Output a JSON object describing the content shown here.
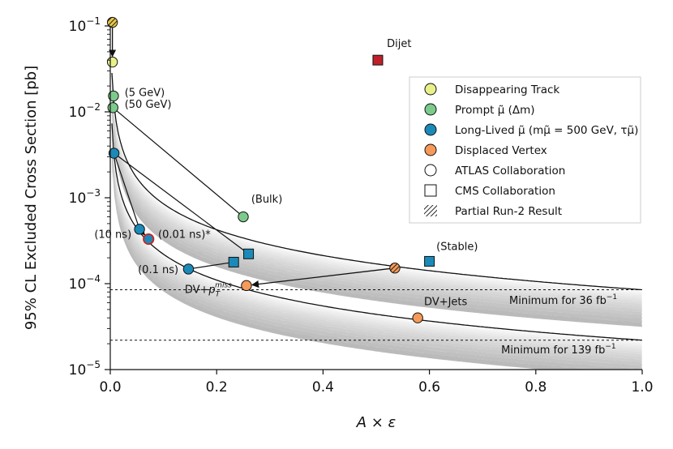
{
  "chart_data": {
    "type": "scatter",
    "xlabel": "A × ε",
    "ylabel": "95% CL Excluded Cross Section [pb]",
    "xlim": [
      0,
      1.0
    ],
    "ylim": [
      1e-05,
      0.1
    ],
    "yscale": "log",
    "x_ticks": [
      {
        "value": 0.0,
        "label": "0.0"
      },
      {
        "value": 0.2,
        "label": "0.2"
      },
      {
        "value": 0.4,
        "label": "0.4"
      },
      {
        "value": 0.6,
        "label": "0.6"
      },
      {
        "value": 0.8,
        "label": "0.8"
      },
      {
        "value": 1.0,
        "label": "1.0"
      }
    ],
    "y_ticks": [
      {
        "value": 1e-05,
        "base": "10",
        "exp": "−5"
      },
      {
        "value": 0.0001,
        "base": "10",
        "exp": "−4"
      },
      {
        "value": 0.001,
        "base": "10",
        "exp": "−3"
      },
      {
        "value": 0.01,
        "base": "10",
        "exp": "−2"
      },
      {
        "value": 0.1,
        "base": "10",
        "exp": "−1"
      }
    ],
    "bands": [
      {
        "name": "Minimum for 36 fb⁻¹",
        "k": 8.5e-05
      },
      {
        "name": "Minimum for 139 fb⁻¹",
        "k": 2.2e-05
      }
    ],
    "colors": {
      "disappearing": "#e8f08a",
      "prompt": "#7ccb8c",
      "longlived": "#1b8ab8",
      "displaced": "#f59a5a",
      "dijet": "#c0202a",
      "ring_red": "#d02020"
    },
    "points": [
      {
        "id": "dt-partial",
        "category": "disappearing",
        "shape": "circle",
        "x": 0.004,
        "y": 0.11,
        "hatched": true
      },
      {
        "id": "dt",
        "category": "disappearing",
        "shape": "circle",
        "x": 0.004,
        "y": 0.038
      },
      {
        "id": "prompt-5",
        "category": "prompt",
        "shape": "circle",
        "x": 0.006,
        "y": 0.0153
      },
      {
        "id": "prompt-50",
        "category": "prompt",
        "shape": "circle",
        "x": 0.005,
        "y": 0.0112
      },
      {
        "id": "prompt-bulk",
        "category": "prompt",
        "shape": "circle",
        "x": 0.25,
        "y": 0.0006
      },
      {
        "id": "ll-top",
        "category": "longlived",
        "shape": "circle",
        "x": 0.007,
        "y": 0.0033
      },
      {
        "id": "ll-10ns",
        "category": "longlived",
        "shape": "circle",
        "x": 0.055,
        "y": 0.00043
      },
      {
        "id": "ll-001ns",
        "category": "longlived",
        "shape": "circle",
        "x": 0.072,
        "y": 0.00033,
        "ring": "ring_red"
      },
      {
        "id": "ll-01ns",
        "category": "longlived",
        "shape": "circle",
        "x": 0.147,
        "y": 0.000148
      },
      {
        "id": "ll-cms-a",
        "category": "longlived",
        "shape": "square",
        "x": 0.232,
        "y": 0.000178
      },
      {
        "id": "ll-cms-b",
        "category": "longlived",
        "shape": "square",
        "x": 0.26,
        "y": 0.000222
      },
      {
        "id": "ll-stable",
        "category": "longlived",
        "shape": "square",
        "x": 0.6,
        "y": 0.000182
      },
      {
        "id": "dv-partial",
        "category": "displaced",
        "shape": "circle",
        "x": 0.535,
        "y": 0.000152,
        "hatched": true
      },
      {
        "id": "dv-met",
        "category": "displaced",
        "shape": "circle",
        "x": 0.256,
        "y": 9.5e-05
      },
      {
        "id": "dv-jets",
        "category": "displaced",
        "shape": "circle",
        "x": 0.578,
        "y": 4e-05
      },
      {
        "id": "dijet",
        "category": "dijet",
        "shape": "square",
        "x": 0.503,
        "y": 0.04
      }
    ],
    "lines": [
      {
        "from": [
          0.005,
          0.0112
        ],
        "to": [
          0.25,
          0.0006
        ]
      },
      {
        "from": [
          0.007,
          0.0033
        ],
        "to": [
          0.26,
          0.000222
        ]
      },
      {
        "from": [
          0.007,
          0.0033
        ],
        "to": [
          0.055,
          0.00043
        ]
      },
      {
        "from": [
          0.147,
          0.000148
        ],
        "to": [
          0.232,
          0.000178
        ]
      }
    ],
    "arrows": [
      {
        "from": [
          0.004,
          0.11
        ],
        "to": [
          0.004,
          0.038
        ]
      },
      {
        "from": [
          0.055,
          0.00043
        ],
        "to": [
          0.072,
          0.00033
        ]
      },
      {
        "from": [
          0.535,
          0.000152
        ],
        "to": [
          0.256,
          9.5e-05
        ]
      }
    ],
    "annotations": [
      {
        "id": "dijet",
        "text": "Dijet",
        "x": 0.52,
        "y": 0.057,
        "anchor": "start"
      },
      {
        "id": "5gev",
        "text": "(5 GeV)",
        "x": 0.027,
        "y": 0.0153,
        "anchor": "start"
      },
      {
        "id": "50gev",
        "text": "(50 GeV)",
        "x": 0.027,
        "y": 0.0112,
        "anchor": "start"
      },
      {
        "id": "bulk",
        "text": "(Bulk)",
        "x": 0.265,
        "y": 0.00088,
        "anchor": "start"
      },
      {
        "id": "stable",
        "text": "(Stable)",
        "x": 0.613,
        "y": 0.000245,
        "anchor": "start"
      },
      {
        "id": "10ns",
        "text": "(10 ns)",
        "x": -0.03,
        "y": 0.00034,
        "anchor": "start"
      },
      {
        "id": "001ns",
        "text": "(0.01 ns)*",
        "x": 0.09,
        "y": 0.00034,
        "anchor": "start"
      },
      {
        "id": "01ns",
        "text": "(0.1 ns)",
        "x": 0.052,
        "y": 0.000132,
        "anchor": "start"
      },
      {
        "id": "dvjets",
        "text": "DV+Jets",
        "x": 0.59,
        "y": 5.6e-05,
        "anchor": "start"
      }
    ],
    "dv_met_label": {
      "prefix": "DV+",
      "p": "p",
      "sub": "T",
      "sup": "miss",
      "x": 0.14,
      "y": 7.8e-05
    },
    "band_labels": [
      {
        "prefix": "Minimum for 36 fb",
        "sup": "−1",
        "x": 0.75,
        "y": 5.8e-05
      },
      {
        "prefix": "Minimum for 139 fb",
        "sup": "−1",
        "x": 0.735,
        "y": 1.55e-05
      }
    ],
    "legend": {
      "position": "upper-right",
      "entries": [
        {
          "label": "Disappearing Track",
          "marker": "circle",
          "color": "disappearing"
        },
        {
          "label": "Prompt μ̃ (Δm)",
          "marker": "circle",
          "color": "prompt"
        },
        {
          "label": "Long-Lived μ̃ (mμ̃ = 500 GeV, τμ̃)",
          "marker": "circle",
          "color": "longlived"
        },
        {
          "label": "Displaced Vertex",
          "marker": "circle",
          "color": "displaced"
        },
        {
          "label": "ATLAS Collaboration",
          "marker": "circle",
          "color": "white"
        },
        {
          "label": "CMS Collaboration",
          "marker": "square",
          "color": "white"
        },
        {
          "label": "Partial Run-2 Result",
          "marker": "hatch",
          "color": "white"
        }
      ]
    }
  }
}
